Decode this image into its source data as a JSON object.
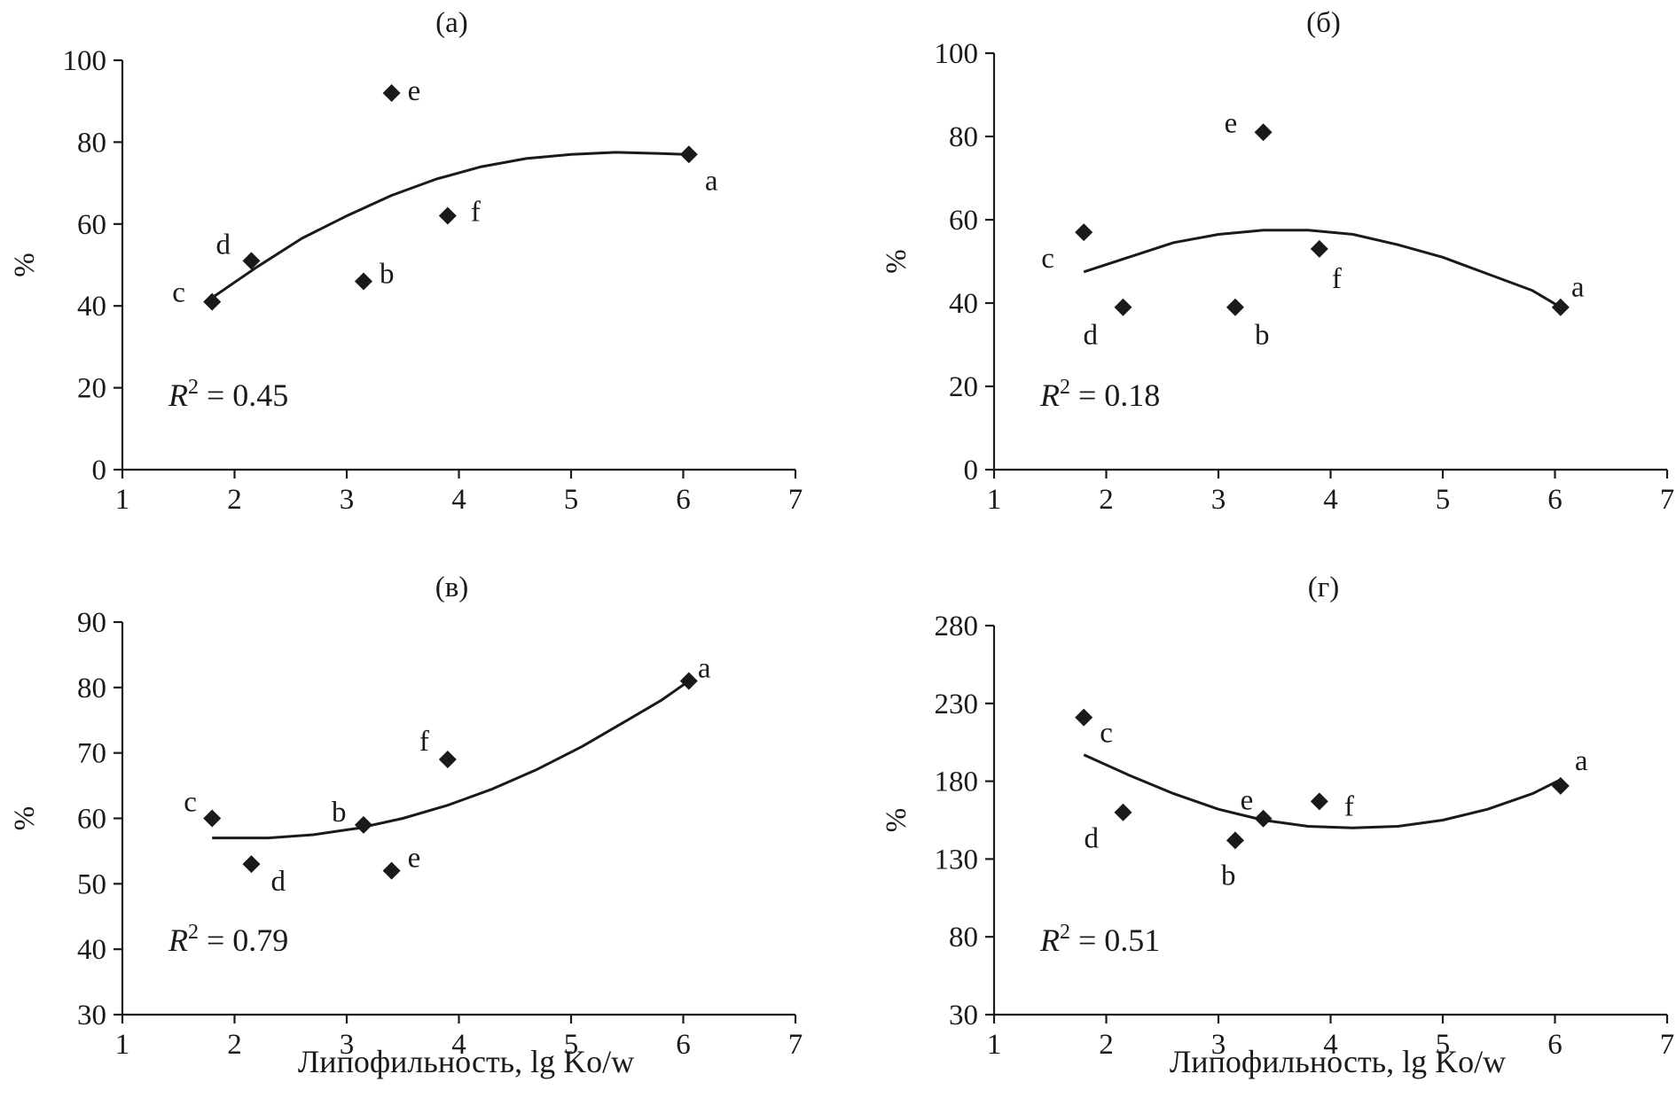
{
  "chart_data": [
    {
      "type": "scatter",
      "title": "(а)",
      "xlabel": "",
      "ylabel": "%",
      "xlim": [
        1,
        7
      ],
      "ylim": [
        0,
        100
      ],
      "xticks": [
        "1",
        "2",
        "3",
        "4",
        "5",
        "6",
        "7"
      ],
      "yticks": [
        "0",
        "20",
        "40",
        "60",
        "80",
        "100"
      ],
      "r2_label": "R",
      "r2_sup": "2",
      "r2_value": " = 0.45",
      "points": [
        {
          "label": "a",
          "x": 6.05,
          "y": 77
        },
        {
          "label": "b",
          "x": 3.15,
          "y": 46
        },
        {
          "label": "c",
          "x": 1.8,
          "y": 41
        },
        {
          "label": "d",
          "x": 2.15,
          "y": 51
        },
        {
          "label": "e",
          "x": 3.4,
          "y": 92
        },
        {
          "label": "f",
          "x": 3.9,
          "y": 62
        }
      ],
      "trendline": {
        "kind": "polynomial-2",
        "x": [
          1.8,
          2.2,
          2.6,
          3.0,
          3.4,
          3.8,
          4.2,
          4.6,
          5.0,
          5.4,
          5.8,
          6.05
        ],
        "y": [
          42,
          49.5,
          56.5,
          62,
          67,
          71,
          74,
          76,
          77,
          77.5,
          77.2,
          77
        ]
      }
    },
    {
      "type": "scatter",
      "title": "(б)",
      "xlabel": "",
      "ylabel": "%",
      "xlim": [
        1,
        7
      ],
      "ylim": [
        0,
        100
      ],
      "xticks": [
        "1",
        "2",
        "3",
        "4",
        "5",
        "6",
        "7"
      ],
      "yticks": [
        "0",
        "20",
        "40",
        "60",
        "80",
        "100"
      ],
      "r2_label": "R",
      "r2_sup": "2",
      "r2_value": " = 0.18",
      "points": [
        {
          "label": "a",
          "x": 6.05,
          "y": 39
        },
        {
          "label": "b",
          "x": 3.15,
          "y": 39
        },
        {
          "label": "c",
          "x": 1.8,
          "y": 57
        },
        {
          "label": "d",
          "x": 2.15,
          "y": 39
        },
        {
          "label": "e",
          "x": 3.4,
          "y": 81
        },
        {
          "label": "f",
          "x": 3.9,
          "y": 53
        }
      ],
      "trendline": {
        "kind": "polynomial-2",
        "x": [
          1.8,
          2.2,
          2.6,
          3.0,
          3.4,
          3.8,
          4.2,
          4.6,
          5.0,
          5.4,
          5.8,
          6.05
        ],
        "y": [
          47.5,
          51,
          54.5,
          56.5,
          57.5,
          57.5,
          56.5,
          54,
          51,
          47,
          43,
          39
        ]
      }
    },
    {
      "type": "scatter",
      "title": "(в)",
      "xlabel": "Липофильность, lg Ko/w",
      "ylabel": "%",
      "xlim": [
        1,
        7
      ],
      "ylim": [
        30,
        90
      ],
      "xticks": [
        "1",
        "2",
        "3",
        "4",
        "5",
        "6",
        "7"
      ],
      "yticks": [
        "30",
        "40",
        "50",
        "60",
        "70",
        "80",
        "90"
      ],
      "r2_label": "R",
      "r2_sup": "2",
      "r2_value": " = 0.79",
      "points": [
        {
          "label": "a",
          "x": 6.05,
          "y": 81
        },
        {
          "label": "b",
          "x": 3.15,
          "y": 59
        },
        {
          "label": "c",
          "x": 1.8,
          "y": 60
        },
        {
          "label": "d",
          "x": 2.15,
          "y": 53
        },
        {
          "label": "e",
          "x": 3.4,
          "y": 52
        },
        {
          "label": "f",
          "x": 3.9,
          "y": 69
        }
      ],
      "trendline": {
        "kind": "polynomial-2",
        "x": [
          1.8,
          2.3,
          2.7,
          3.1,
          3.5,
          3.9,
          4.3,
          4.7,
          5.1,
          5.5,
          5.8,
          6.05
        ],
        "y": [
          57,
          57,
          57.5,
          58.5,
          60,
          62,
          64.5,
          67.5,
          71,
          75,
          78,
          81
        ]
      }
    },
    {
      "type": "scatter",
      "title": "(г)",
      "xlabel": "Липофильность, lg Ko/w",
      "ylabel": "%",
      "xlim": [
        1,
        7
      ],
      "ylim": [
        30,
        280
      ],
      "xticks": [
        "1",
        "2",
        "3",
        "4",
        "5",
        "6",
        "7"
      ],
      "yticks": [
        "30",
        "80",
        "130",
        "180",
        "230",
        "280"
      ],
      "r2_label": "R",
      "r2_sup": "2",
      "r2_value": " = 0.51",
      "points": [
        {
          "label": "a",
          "x": 6.05,
          "y": 177
        },
        {
          "label": "b",
          "x": 3.15,
          "y": 142
        },
        {
          "label": "c",
          "x": 1.8,
          "y": 221
        },
        {
          "label": "d",
          "x": 2.15,
          "y": 160
        },
        {
          "label": "e",
          "x": 3.4,
          "y": 156
        },
        {
          "label": "f",
          "x": 3.9,
          "y": 167
        }
      ],
      "trendline": {
        "kind": "polynomial-2",
        "x": [
          1.8,
          2.2,
          2.6,
          3.0,
          3.4,
          3.8,
          4.2,
          4.6,
          5.0,
          5.4,
          5.8,
          6.05
        ],
        "y": [
          197,
          184,
          172,
          162,
          155,
          151,
          150,
          151,
          155,
          162,
          172,
          181
        ]
      }
    }
  ]
}
